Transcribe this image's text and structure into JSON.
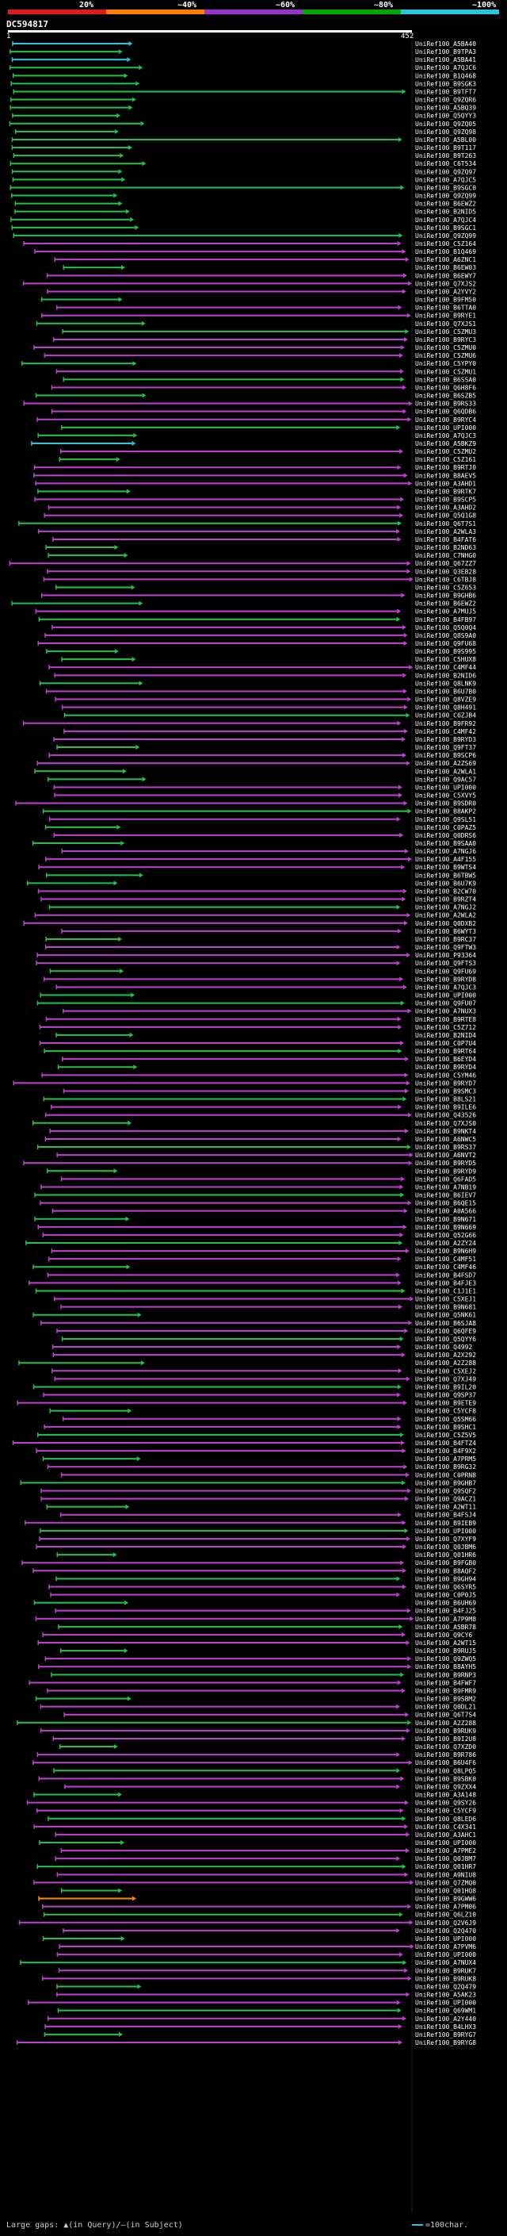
{
  "identity_scale": {
    "labels": [
      "20%",
      "~40%",
      "~60%",
      "~80%",
      "~100%"
    ],
    "colors": [
      "#e31a1c",
      "#ff7f00",
      "#9a32cd",
      "#00a800",
      "#29c4de"
    ]
  },
  "query": {
    "name": "DC594817",
    "start": "1",
    "end": "452"
  },
  "hits": [
    "UniRef100_A5BA40",
    "UniRef100_B9TPA3",
    "UniRef100_A5BA41",
    "UniRef100_A7QJC6",
    "UniRef100_B1Q468",
    "UniRef100_B9SGK3",
    "UniRef100_B9TFT7",
    "UniRef100_Q9ZQR6",
    "UniRef100_A5BQ39",
    "UniRef100_Q5QYY3",
    "UniRef100_Q9ZQ05",
    "UniRef100_Q9ZQ98",
    "UniRef100_A5BL00",
    "UniRef100_B9T117",
    "UniRef100_B9T263",
    "UniRef100_C6T534",
    "UniRef100_Q9ZQ97",
    "UniRef100_A7QJC5",
    "UniRef100_B9SGC0",
    "UniRef100_Q9ZQ99",
    "UniRef100_B6EWZ2",
    "UniRef100_B2NID5",
    "UniRef100_A7QJC4",
    "UniRef100_B9SGC1",
    "UniRef100_Q9ZQ99",
    "UniRef100_C5Z164",
    "UniRef100_B1Q469",
    "UniRef100_A6ZNC1",
    "UniRef100_B6EW03",
    "UniRef100_B6EWY7",
    "UniRef100_Q7XJS2",
    "UniRef100_A2YVY2",
    "UniRef100_B9FM50",
    "UniRef100_B6TTA0",
    "UniRef100_B9RYE1",
    "UniRef100_Q7XJS1",
    "UniRef100_C5ZMU3",
    "UniRef100_B9RYC3",
    "UniRef100_C5ZMU0",
    "UniRef100_C5ZMU6",
    "UniRef100_C5YPY0",
    "UniRef100_C5ZMU1",
    "UniRef100_B6SSA0",
    "UniRef100_Q6H8F6",
    "UniRef100_B6SZB5",
    "UniRef100_B9RS33",
    "UniRef100_Q6QDB6",
    "UniRef100_B9RYC4",
    "UniRef100_UPI000",
    "UniRef100_A7QJC3",
    "UniRef100_A5BKZ9",
    "UniRef100_C5ZMU2",
    "UniRef100_C5Z161",
    "UniRef100_B9RTJ0",
    "UniRef100_B8AEV5",
    "UniRef100_A3AHD1",
    "UniRef100_B9RTK7",
    "UniRef100_B9SCP5",
    "UniRef100_A3AHD2",
    "UniRef100_Q5Q1G8",
    "UniRef100_Q6T7S1",
    "UniRef100_A2WLA3",
    "UniRef100_B4FAT6",
    "UniRef100_B2ND63",
    "UniRef100_C7NHG0",
    "UniRef100_Q67ZZ7",
    "UniRef100_Q3EB28",
    "UniRef100_C6TBJ8",
    "UniRef100_C5Z653",
    "UniRef100_B9GHB6",
    "UniRef100_B6EWZ2",
    "UniRef100_A7MUJ5",
    "UniRef100_B4FB97",
    "UniRef100_Q5Q0Q4",
    "UniRef100_Q8S9A0",
    "UniRef100_Q9FU68",
    "UniRef100_B9S995",
    "UniRef100_C5HUX8",
    "UniRef100_C4MF44",
    "UniRef100_B2NID6",
    "UniRef100_Q8LNK9",
    "UniRef100_B6U7B0",
    "UniRef100_Q8VZE9",
    "UniRef100_Q8H491",
    "UniRef100_C6ZJB4",
    "UniRef100_B9FR92",
    "UniRef100_C4MF42",
    "UniRef100_B9RYD3",
    "UniRef100_Q9FT37",
    "UniRef100_B9SCP6",
    "UniRef100_A2ZS69",
    "UniRef100_A2WLA1",
    "UniRef100_Q9AC57",
    "UniRef100_UPI000",
    "UniRef100_C5XVY5",
    "UniRef100_B9SDR0",
    "UniRef100_B8AKP2",
    "UniRef100_Q9SL51",
    "UniRef100_C0PAZ5",
    "UniRef100_Q0DRS6",
    "UniRef100_B9SAA0",
    "UniRef100_A7NGJ6",
    "UniRef100_A4F155",
    "UniRef100_B9WTS4",
    "UniRef100_B6TBW5",
    "UniRef100_B6U7K9",
    "UniRef100_B2CW70",
    "UniRef100_B9RZT4",
    "UniRef100_A7NGJ2",
    "UniRef100_A2WLA2",
    "UniRef100_Q0DXB2",
    "UniRef100_B6WYT3",
    "UniRef100_B9RC37",
    "UniRef100_Q9FTW3",
    "UniRef100_P93364",
    "UniRef100_Q9FTS3",
    "UniRef100_Q9FU69",
    "UniRef100_B9RYD8",
    "UniRef100_A7QJC3",
    "UniRef100_UPI000",
    "UniRef100_Q9FU07",
    "UniRef100_A7NUX3",
    "UniRef100_B9RTE8",
    "UniRef100_C5Z712",
    "UniRef100_B2NID4",
    "UniRef100_C0P7U4",
    "UniRef100_B9RT64",
    "UniRef100_B6EYD4",
    "UniRef100_B9RYD4",
    "UniRef100_C5YM46",
    "UniRef100_B9RYD7",
    "UniRef100_B9SMC3",
    "UniRef100_B8LS21",
    "UniRef100_B9ILE6",
    "UniRef100_Q43526",
    "UniRef100_Q7XJS0",
    "UniRef100_B9NKT4",
    "UniRef100_A6NWC5",
    "UniRef100_B9RS37",
    "UniRef100_A6NVT2",
    "UniRef100_B9RYD5",
    "UniRef100_B9RYD9",
    "UniRef100_Q6FAD5",
    "UniRef100_A7NB19",
    "UniRef100_B6IEV7",
    "UniRef100_B6QE15",
    "UniRef100_A0A566",
    "UniRef100_B9N671",
    "UniRef100_B9N669",
    "UniRef100_Q52G66",
    "UniRef100_A2ZY24",
    "UniRef100_B9N6H9",
    "UniRef100_C4MF51",
    "UniRef100_C4MF46",
    "UniRef100_B4FSD7",
    "UniRef100_B4FJE3",
    "UniRef100_C1J1E1",
    "UniRef100_C5XEJ1",
    "UniRef100_B9N681",
    "UniRef100_Q5NK61",
    "UniRef100_B6SJA8",
    "UniRef100_Q6QFE9",
    "UniRef100_Q5QYY6",
    "UniRef100_Q4992",
    "UniRef100_A2X292",
    "UniRef100_A2Z288",
    "UniRef100_C5XEJ2",
    "UniRef100_Q7XJ49",
    "UniRef100_B9IL20",
    "UniRef100_Q9SP37",
    "UniRef100_B9ETE9",
    "UniRef100_C5YCF8",
    "UniRef100_Q5SM66",
    "UniRef100_B9SHC1",
    "UniRef100_C5Z5V5",
    "UniRef100_B4FTZ4",
    "UniRef100_B4F9X2",
    "UniRef100_A7PRM5",
    "UniRef100_B9RG32",
    "UniRef100_C0PRN8",
    "UniRef100_B9GHB7",
    "UniRef100_Q9SQF2",
    "UniRef100_Q9ACZ1",
    "UniRef100_A2WT11",
    "UniRef100_B4FSJ4",
    "UniRef100_B9IEB9",
    "UniRef100_UPI000",
    "UniRef100_Q7XYF9",
    "UniRef100_Q0JBM6",
    "UniRef100_Q01HR6",
    "UniRef100_B9FGB0",
    "UniRef100_B8AQF2",
    "UniRef100_B9GH94",
    "UniRef100_Q6SYR5",
    "UniRef100_C0P0J5",
    "UniRef100_B6UH69",
    "UniRef100_B4FJ25",
    "UniRef100_A7P9M8",
    "UniRef100_A5BR78",
    "UniRef100_Q9CY6",
    "UniRef100_A2WT15",
    "UniRef100_B9RUJ5",
    "UniRef100_Q9ZWQ5",
    "UniRef100_B8AYH5",
    "UniRef100_B9RNP3",
    "UniRef100_B4FWF7",
    "UniRef100_B9FMR9",
    "UniRef100_B9SBM2",
    "UniRef100_Q0DL21",
    "UniRef100_Q6T7S4",
    "UniRef100_A2Z288",
    "UniRef100_B9RUK9",
    "UniRef100_B9I2U8",
    "UniRef100_Q7XZD0",
    "UniRef100_B9R786",
    "UniRef100_B6U4F6",
    "UniRef100_Q8LPQ5",
    "UniRef100_B9SBK0",
    "UniRef100_Q9ZXX4",
    "UniRef100_A3A148",
    "UniRef100_Q9SY26",
    "UniRef100_C5YCF9",
    "UniRef100_Q8LED6",
    "UniRef100_C4X341",
    "UniRef100_A3AHC1",
    "UniRef100_UPI000",
    "UniRef100_A7PME2",
    "UniRef100_Q0JBM7",
    "UniRef100_Q01HR7",
    "UniRef100_A9NIU8",
    "UniRef100_Q7ZMQ0",
    "UniRef100_Q01HQ8",
    "UniRef100_B9GWW6",
    "UniRef100_A7PM06",
    "UniRef100_Q6LZ10",
    "UniRef100_Q2V6J9",
    "UniRef100_Q2Q470",
    "UniRef100_UPI000",
    "UniRef100_A7PVM6",
    "UniRef100_UPI000",
    "UniRef100_A7NUX4",
    "UniRef100_B9RUK7",
    "UniRef100_B9RUK8",
    "UniRef100_Q2Q479",
    "UniRef100_A5AK23",
    "UniRef100_UPI000",
    "UniRef100_Q69WM1",
    "UniRef100_A2Y440",
    "UniRef100_B4LHX3",
    "UniRef100_B9RYG7",
    "UniRef100_B9RYG8"
  ],
  "legend": {
    "left": "Large gaps: ▲(in Query)/—(in Subject)",
    "right": "=100char."
  }
}
